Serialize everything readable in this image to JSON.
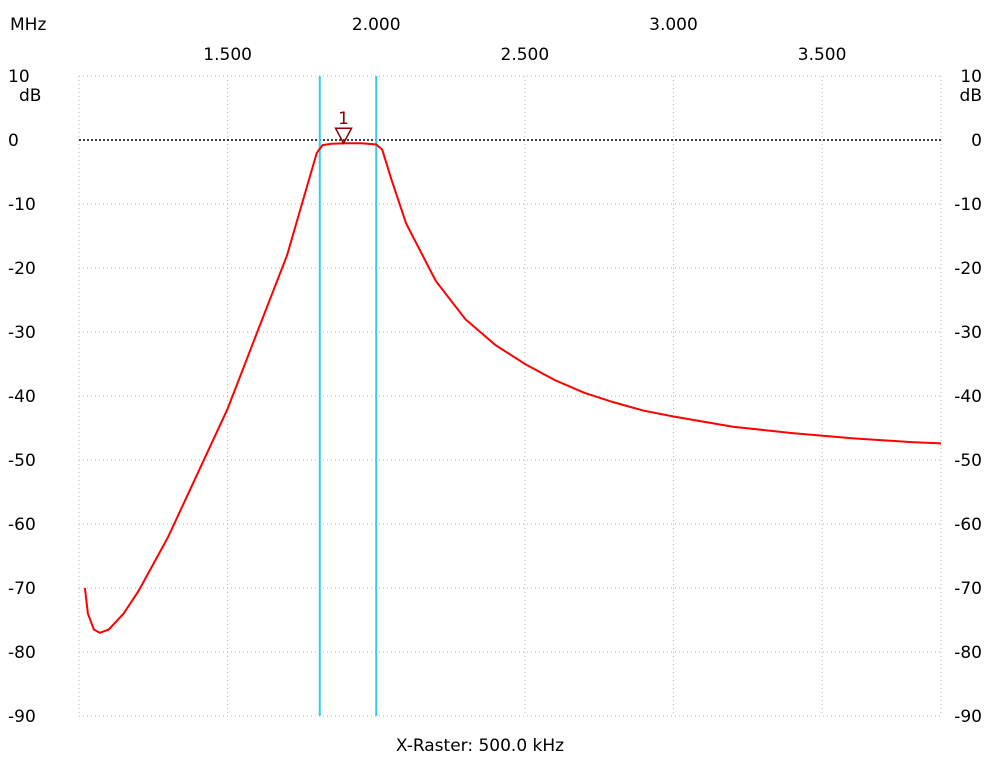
{
  "chart_data": {
    "type": "line",
    "x_unit": "MHz",
    "y_unit": "dB",
    "footer": "X-Raster: 500.0 kHz",
    "x_range": [
      1.0,
      3.9
    ],
    "y_range": [
      -90,
      10
    ],
    "x_ticks_top": [
      "2.000",
      "3.000"
    ],
    "x_ticks_bottom": [
      "1.500",
      "2.500",
      "3.500"
    ],
    "y_ticks": [
      "10",
      "0",
      "-10",
      "-20",
      "-30",
      "-40",
      "-50",
      "-60",
      "-70",
      "-80",
      "-90"
    ],
    "grid": true,
    "reference_level_db": 0,
    "cursor_lines_mhz": [
      1.81,
      2.0
    ],
    "marker": {
      "label": "1",
      "x": 1.89,
      "y": -0.5
    },
    "series": [
      {
        "color": "#ff0000",
        "points": [
          [
            1.02,
            -70
          ],
          [
            1.03,
            -74
          ],
          [
            1.05,
            -76.5
          ],
          [
            1.07,
            -77
          ],
          [
            1.1,
            -76.5
          ],
          [
            1.15,
            -74
          ],
          [
            1.2,
            -70.5
          ],
          [
            1.3,
            -62
          ],
          [
            1.4,
            -52
          ],
          [
            1.5,
            -42
          ],
          [
            1.6,
            -30
          ],
          [
            1.7,
            -18
          ],
          [
            1.75,
            -10
          ],
          [
            1.8,
            -2
          ],
          [
            1.82,
            -0.8
          ],
          [
            1.85,
            -0.6
          ],
          [
            1.9,
            -0.5
          ],
          [
            1.95,
            -0.5
          ],
          [
            2.0,
            -0.7
          ],
          [
            2.02,
            -1.5
          ],
          [
            2.05,
            -6
          ],
          [
            2.1,
            -13
          ],
          [
            2.2,
            -22
          ],
          [
            2.3,
            -28
          ],
          [
            2.4,
            -32
          ],
          [
            2.5,
            -35
          ],
          [
            2.6,
            -37.5
          ],
          [
            2.7,
            -39.5
          ],
          [
            2.8,
            -41
          ],
          [
            2.9,
            -42.3
          ],
          [
            3.0,
            -43.2
          ],
          [
            3.2,
            -44.8
          ],
          [
            3.4,
            -45.8
          ],
          [
            3.6,
            -46.6
          ],
          [
            3.8,
            -47.2
          ],
          [
            3.9,
            -47.4
          ]
        ]
      }
    ]
  }
}
